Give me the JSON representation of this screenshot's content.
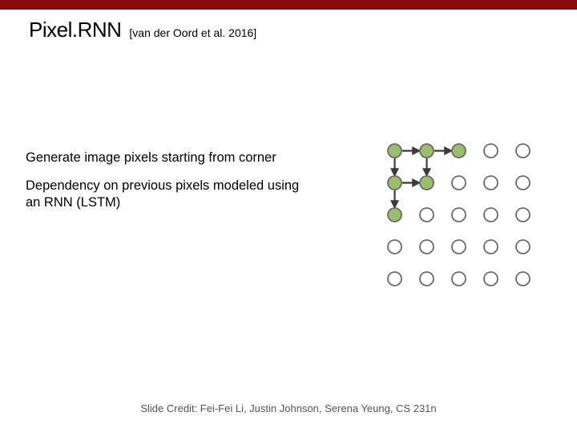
{
  "colors": {
    "topbar": "#8a0b0b",
    "node_fill_on": "#9abf6a",
    "node_fill_off": "#ffffff",
    "node_stroke": "#6b6b6b",
    "arrow": "#3a3a3a",
    "title": "#000000",
    "footer": "#555555"
  },
  "title": "Pixel.RNN",
  "citation": "[van der Oord et al. 2016]",
  "body": {
    "line1": "Generate image pixels starting from corner",
    "line2": "Dependency on previous pixels modeled using an RNN (LSTM)"
  },
  "footer": "Slide Credit: Fei-Fei Li, Justin Johnson, Serena Yeung, CS 231n",
  "grid": {
    "rows": 5,
    "cols": 5,
    "cell": 40,
    "radius": 8.5,
    "stroke_width": 1.8,
    "arrow_width": 2.2,
    "filled": [
      [
        0,
        0
      ],
      [
        0,
        1
      ],
      [
        0,
        2
      ],
      [
        1,
        0
      ],
      [
        1,
        1
      ],
      [
        2,
        0
      ]
    ],
    "arrows": [
      {
        "from": [
          0,
          0
        ],
        "to": [
          0,
          1
        ]
      },
      {
        "from": [
          0,
          1
        ],
        "to": [
          0,
          2
        ]
      },
      {
        "from": [
          0,
          0
        ],
        "to": [
          1,
          0
        ]
      },
      {
        "from": [
          0,
          1
        ],
        "to": [
          1,
          1
        ]
      },
      {
        "from": [
          1,
          0
        ],
        "to": [
          1,
          1
        ]
      },
      {
        "from": [
          1,
          0
        ],
        "to": [
          2,
          0
        ]
      }
    ]
  }
}
